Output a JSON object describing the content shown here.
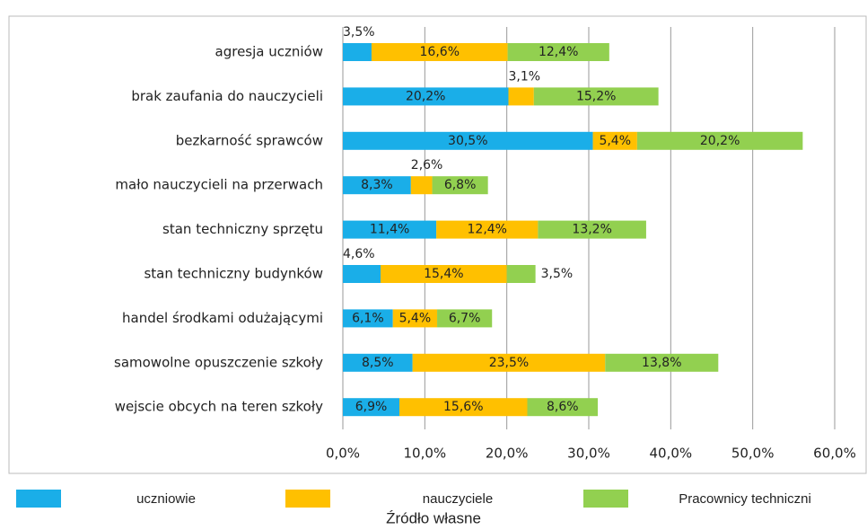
{
  "chart_data": {
    "type": "stacked_bar_horizontal",
    "categories": [
      "agresja uczniów",
      "brak zaufania do nauczycieli",
      "bezkarność sprawców",
      "mało nauczycieli na przerwach",
      "stan techniczny sprzętu",
      "stan techniczny budynków",
      "handel środkami odużającymi",
      "samowolne opuszczenie szkoły",
      "wejscie obcych na teren szkoły"
    ],
    "series": [
      {
        "name": "uczniowie",
        "color": "#1aaee8",
        "values": [
          3.5,
          20.2,
          30.5,
          8.3,
          11.4,
          4.6,
          6.1,
          8.5,
          6.9
        ],
        "value_labels": [
          "3,5%",
          "20,2%",
          "30,5%",
          "8,3%",
          "11,4%",
          "4,6%",
          "6,1%",
          "8,5%",
          "6,9%"
        ]
      },
      {
        "name": "nauczyciele",
        "color": "#ffc000",
        "values": [
          16.6,
          3.1,
          5.4,
          2.6,
          12.4,
          15.4,
          5.4,
          23.5,
          15.6
        ],
        "value_labels": [
          "16,6%",
          "3,1%",
          "5,4%",
          "2,6%",
          "12,4%",
          "15,4%",
          "5,4%",
          "23,5%",
          "15,6%"
        ]
      },
      {
        "name": "Pracownicy techniczni",
        "color": "#92d050",
        "values": [
          12.4,
          15.2,
          20.2,
          6.8,
          13.2,
          3.5,
          6.7,
          13.8,
          8.6
        ],
        "value_labels": [
          "12,4%",
          "15,2%",
          "20,2%",
          "6,8%",
          "13,2%",
          "3,5%",
          "6,7%",
          "13,8%",
          "8,6%"
        ]
      }
    ],
    "xlim": [
      0,
      60
    ],
    "xticks": [
      {
        "value": 0,
        "label": "0,0%"
      },
      {
        "value": 10,
        "label": "10,0%"
      },
      {
        "value": 20,
        "label": "20,0%"
      },
      {
        "value": 30,
        "label": "30,0%"
      },
      {
        "value": 40,
        "label": "40,0%"
      },
      {
        "value": 50,
        "label": "50,0%"
      },
      {
        "value": 60,
        "label": "60,0%"
      }
    ],
    "grid": true,
    "legend": "bottom",
    "source": "Źródło własne"
  }
}
